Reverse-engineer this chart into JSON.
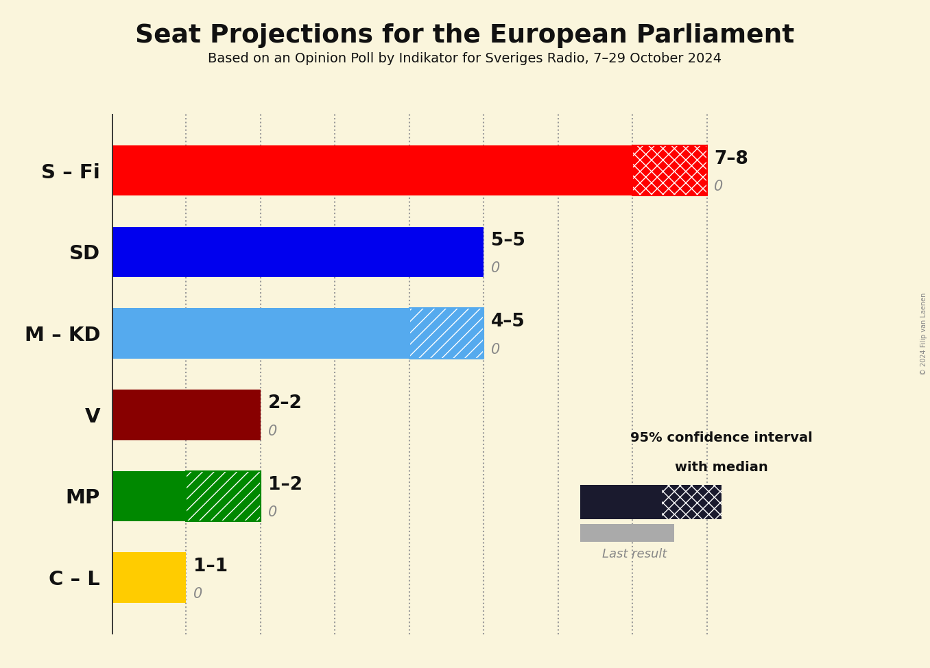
{
  "title": "Seat Projections for the European Parliament",
  "subtitle": "Based on an Opinion Poll by Indikator for Sveriges Radio, 7–29 October 2024",
  "copyright": "© 2024 Filip van Laenen",
  "background_color": "#faf5dc",
  "parties": [
    "S – Fi",
    "SD",
    "M – KD",
    "V",
    "MP",
    "C – L"
  ],
  "median_values": [
    7,
    5,
    4,
    2,
    1,
    1
  ],
  "upper_values": [
    8,
    5,
    5,
    2,
    2,
    1
  ],
  "last_results": [
    0,
    0,
    0,
    0,
    0,
    0
  ],
  "colors": [
    "#ff0000",
    "#0000ee",
    "#55aaee",
    "#880000",
    "#008800",
    "#ffcc00"
  ],
  "label_ranges": [
    "7–8",
    "5–5",
    "4–5",
    "2–2",
    "1–2",
    "1–1"
  ],
  "xlim": [
    0,
    9
  ],
  "bar_height": 0.62,
  "legend_text_line1": "95% confidence interval",
  "legend_text_line2": "with median",
  "legend_last_result": "Last result",
  "legend_color": "#1a1a2e",
  "last_result_color": "#aaaaaa",
  "dotted_line_color": "#999999",
  "hatch_color_sfi": "#ff0000",
  "hatch_color_mkd": "#55aaee",
  "hatch_color_mp": "#008800"
}
